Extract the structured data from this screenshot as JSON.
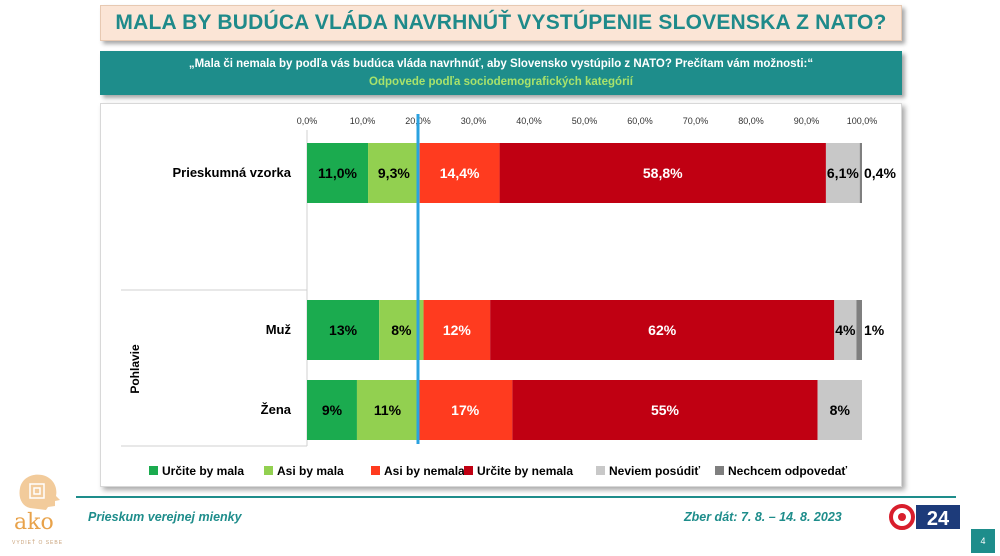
{
  "title": "MALA BY BUDÚCA VLÁDA NAVRHNÚŤ VYSTÚPENIE SLOVENSKA Z NATO?",
  "question": "„Mala či nemala by podľa vás budúca vláda navrhnúť, aby Slovensko vystúpilo z NATO? Prečítam vám možnosti:“",
  "subtitle": "Odpovede podľa sociodemografických kategórií",
  "chart_data": {
    "type": "bar",
    "orientation": "horizontal",
    "stacked": true,
    "x_ticks": [
      "0,0%",
      "10,0%",
      "20,0%",
      "30,0%",
      "40,0%",
      "50,0%",
      "60,0%",
      "70,0%",
      "80,0%",
      "90,0%",
      "100,0%"
    ],
    "xlim": [
      0,
      100
    ],
    "reference_line": 20,
    "group_label": "Pohlavie",
    "categories": [
      "Prieskumná vzorka",
      "Muž",
      "Žena"
    ],
    "series": [
      {
        "name": "Určite by mala",
        "color": "#1bab4f",
        "values": [
          11.0,
          13,
          9
        ],
        "labels": [
          "11,0%",
          "13%",
          "9%"
        ]
      },
      {
        "name": "Asi by mala",
        "color": "#92d050",
        "values": [
          9.3,
          8,
          11
        ],
        "labels": [
          "9,3%",
          "8%",
          "11%"
        ]
      },
      {
        "name": "Asi by nemala",
        "color": "#ff3b1f",
        "values": [
          14.4,
          12,
          17
        ],
        "labels": [
          "14,4%",
          "12%",
          "17%"
        ]
      },
      {
        "name": "Určite by nemala",
        "color": "#c00012",
        "values": [
          58.8,
          62,
          55
        ],
        "labels": [
          "58,8%",
          "62%",
          "55%"
        ]
      },
      {
        "name": "Neviem posúdiť",
        "color": "#c8c8c8",
        "values": [
          6.1,
          4,
          8
        ],
        "labels": [
          "6,1%",
          "4%",
          "8%"
        ]
      },
      {
        "name": "Nechcem odpovedať",
        "color": "#7f7f7f",
        "values": [
          0.4,
          1,
          0
        ],
        "labels": [
          "0,4%",
          "1%",
          ""
        ]
      }
    ],
    "legend_position": "bottom",
    "grid": false
  },
  "footer": {
    "left": "Prieskum verejnej mienky",
    "right": "Zber dát: 7. 8. – 14. 8. 2023",
    "page": "4"
  },
  "logos": {
    "ako": "ako",
    "ako_sub": "VYDIEŤ O SEBE",
    "ta3": "24"
  }
}
